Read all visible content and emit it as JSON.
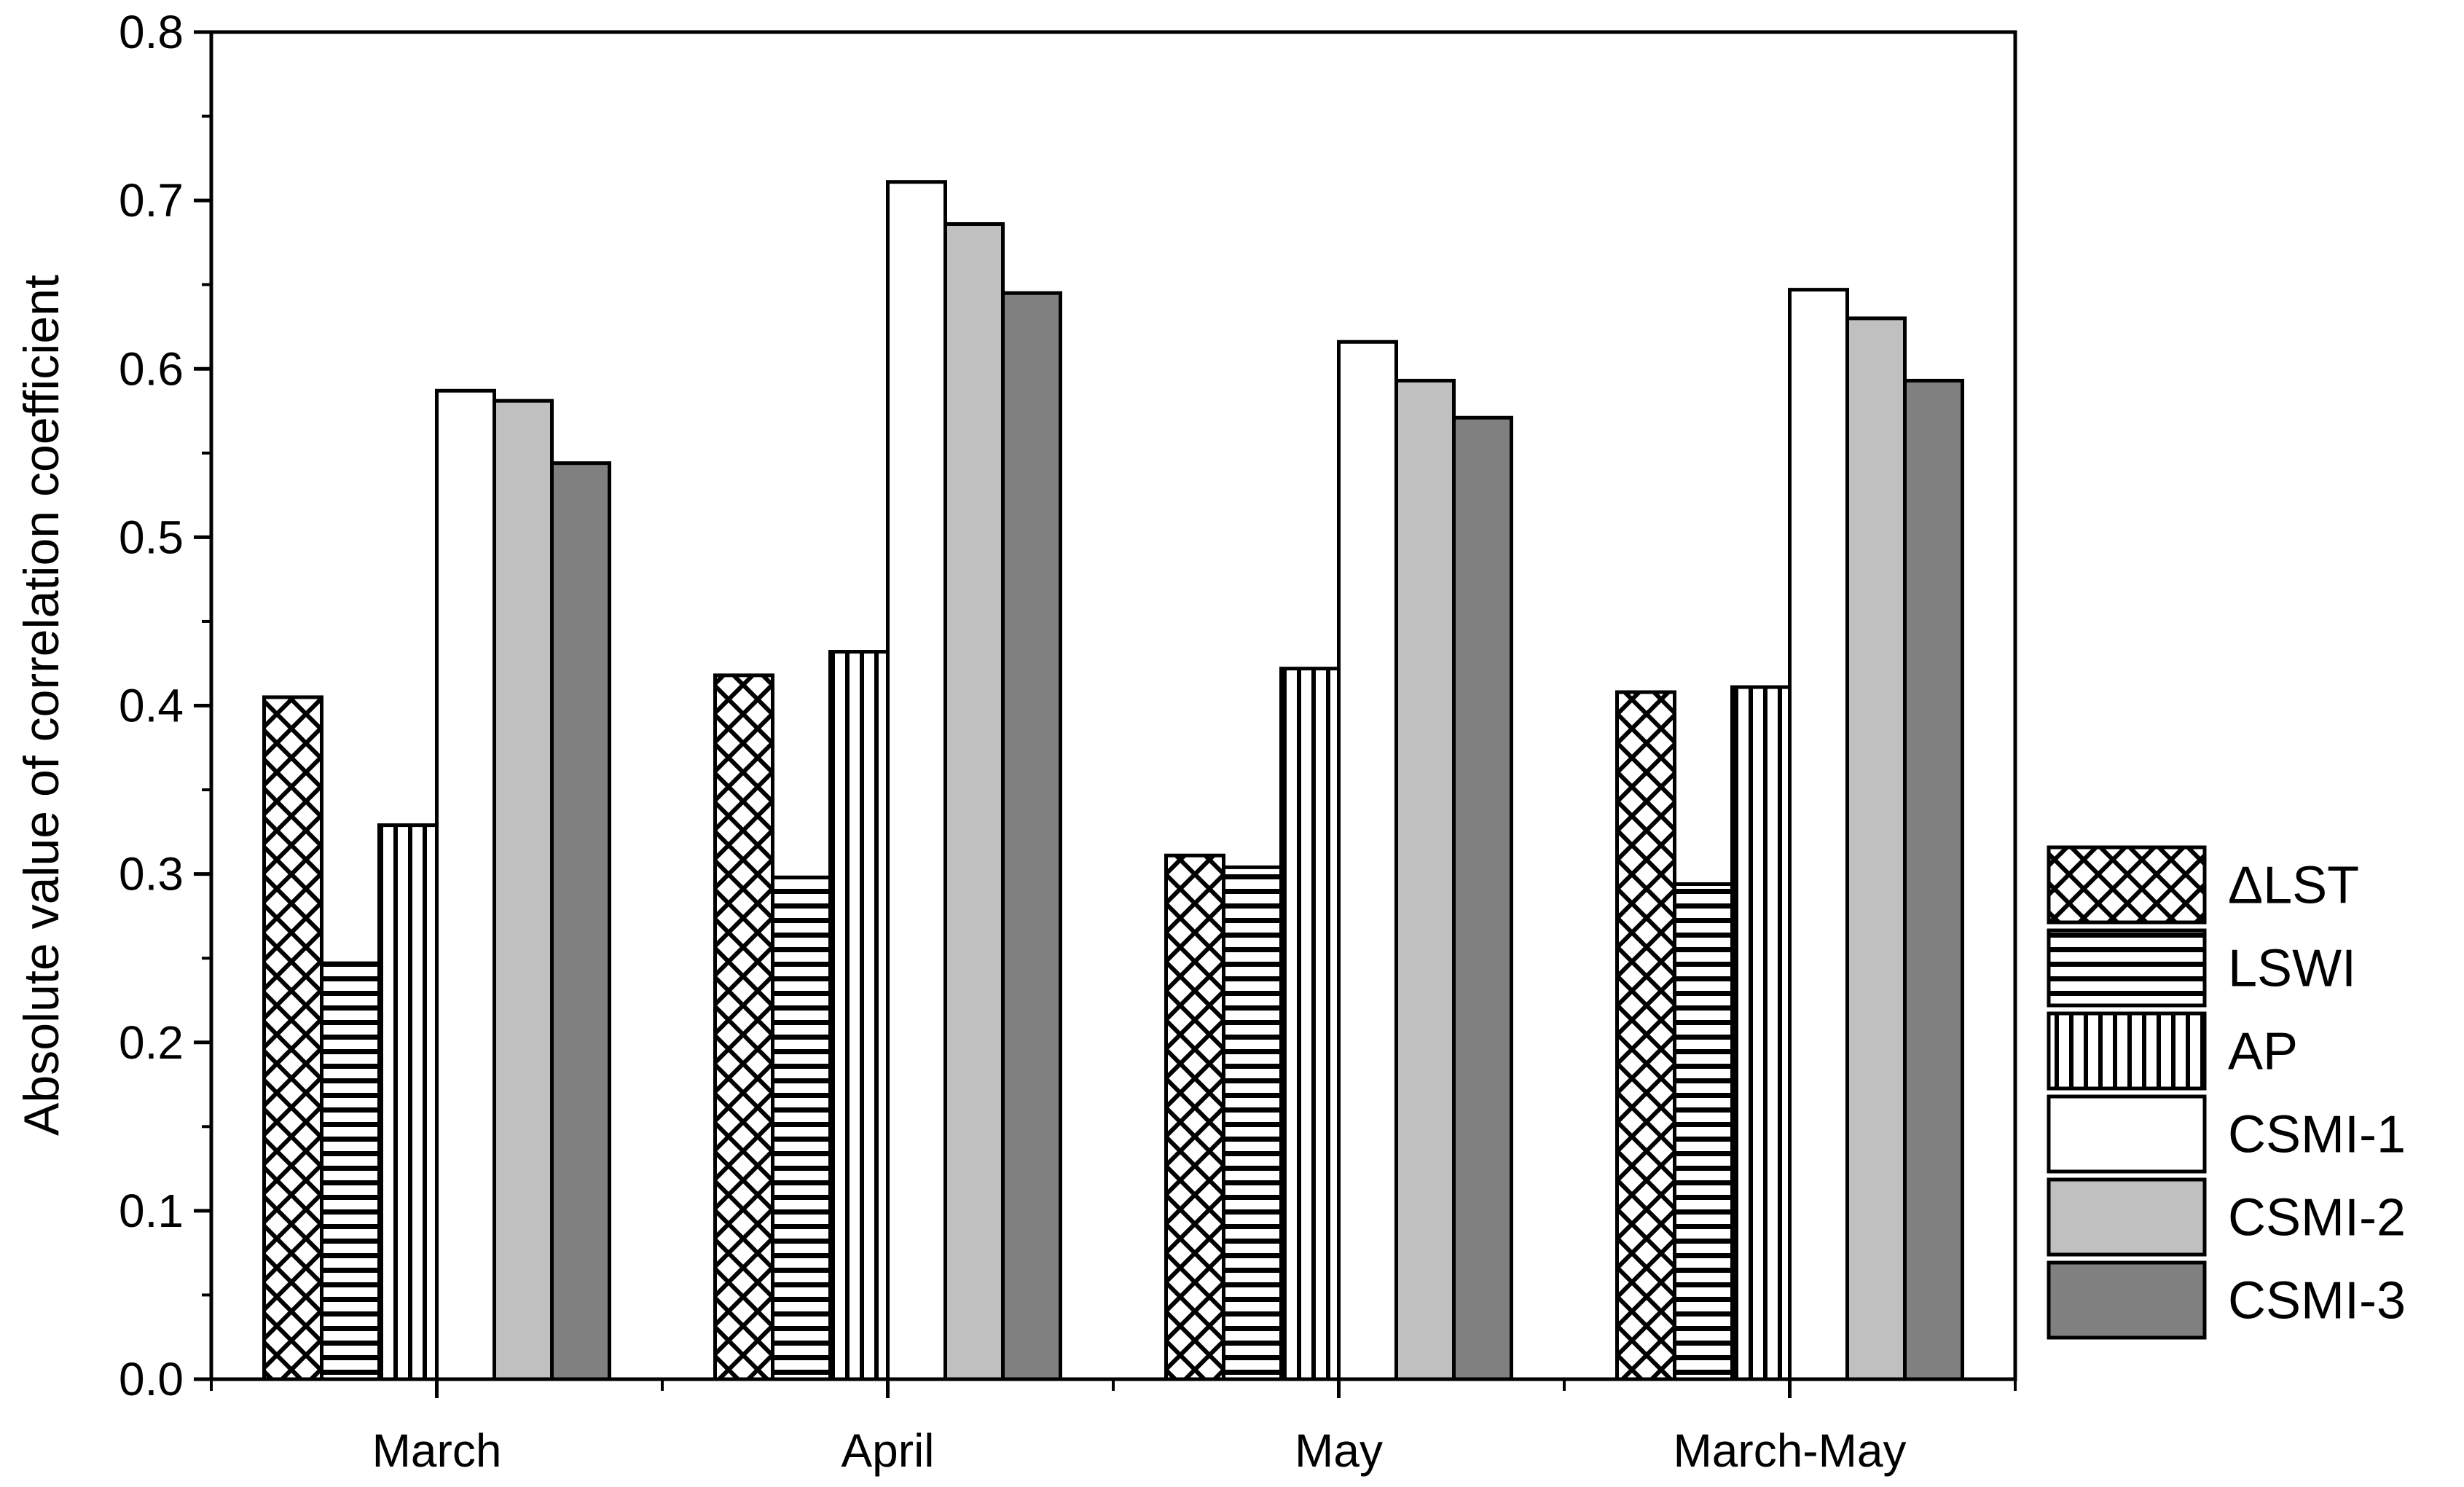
{
  "chart_data": {
    "type": "bar",
    "title": "",
    "xlabel": "",
    "ylabel": "Absolute value of correlation coefficient",
    "ylim": [
      0,
      0.8
    ],
    "yticks": [
      "0.0",
      "0.1",
      "0.2",
      "0.3",
      "0.4",
      "0.5",
      "0.6",
      "0.7",
      "0.8"
    ],
    "categories": [
      "March",
      "April",
      "May",
      "March-May"
    ],
    "grid": false,
    "legend_position": "right-bottom",
    "series": [
      {
        "name": "ΔLST",
        "pattern": "crosshatch",
        "color": "#ffffff",
        "values": [
          0.405,
          0.418,
          0.311,
          0.408
        ]
      },
      {
        "name": "LSWI",
        "pattern": "horizontal",
        "color": "#ffffff",
        "values": [
          0.247,
          0.298,
          0.304,
          0.294
        ]
      },
      {
        "name": "AP",
        "pattern": "vertical",
        "color": "#ffffff",
        "values": [
          0.329,
          0.432,
          0.422,
          0.411
        ]
      },
      {
        "name": "CSMI-1",
        "pattern": "solid",
        "color": "#ffffff",
        "values": [
          0.587,
          0.711,
          0.616,
          0.647
        ]
      },
      {
        "name": "CSMI-2",
        "pattern": "solid",
        "color": "#c0c0c0",
        "values": [
          0.581,
          0.686,
          0.593,
          0.63
        ]
      },
      {
        "name": "CSMI-3",
        "pattern": "solid",
        "color": "#808080",
        "values": [
          0.544,
          0.645,
          0.571,
          0.593
        ]
      }
    ]
  }
}
